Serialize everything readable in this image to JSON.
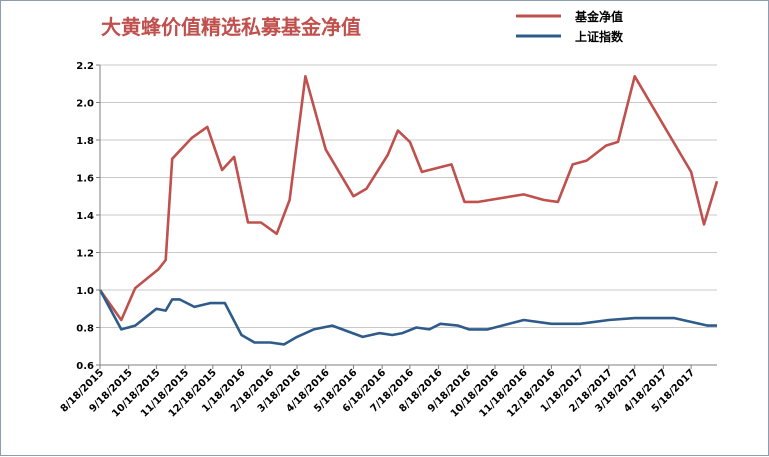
{
  "chart_data": {
    "type": "line",
    "title": "大黄蜂价值精选私募基金净值",
    "xlabel": "",
    "ylabel": "",
    "ylim": [
      0.6,
      2.2
    ],
    "yticks": [
      "0.6",
      "0.8",
      "1.0",
      "1.2",
      "1.4",
      "1.6",
      "1.8",
      "2.0",
      "2.2"
    ],
    "xticks": [
      "8/18/2015",
      "9/18/2015",
      "10/18/2015",
      "11/18/2015",
      "12/18/2015",
      "1/18/2016",
      "2/18/2016",
      "3/18/2016",
      "4/18/2016",
      "5/18/2016",
      "6/18/2016",
      "7/18/2016",
      "8/18/2016",
      "9/18/2016",
      "10/18/2016",
      "11/18/2016",
      "12/18/2016",
      "1/18/2017",
      "2/18/2017",
      "3/18/2017",
      "4/18/2017",
      "5/18/2017"
    ],
    "grid": true,
    "legend_position": "top-right",
    "x_domain": [
      "8/18/2015",
      "6/15/2017"
    ],
    "series": [
      {
        "name": "基金净值",
        "color": "#c0504d",
        "points": [
          [
            "8/18/2015",
            1.0
          ],
          [
            "9/10/2015",
            0.84
          ],
          [
            "9/25/2015",
            1.01
          ],
          [
            "10/20/2015",
            1.11
          ],
          [
            "10/28/2015",
            1.16
          ],
          [
            "11/4/2015",
            1.7
          ],
          [
            "11/25/2015",
            1.81
          ],
          [
            "12/12/2015",
            1.87
          ],
          [
            "12/28/2015",
            1.64
          ],
          [
            "1/10/2016",
            1.71
          ],
          [
            "1/25/2016",
            1.36
          ],
          [
            "2/8/2016",
            1.36
          ],
          [
            "2/25/2016",
            1.3
          ],
          [
            "3/10/2016",
            1.48
          ],
          [
            "3/27/2016",
            2.14
          ],
          [
            "4/18/2016",
            1.75
          ],
          [
            "5/18/2016",
            1.5
          ],
          [
            "6/1/2016",
            1.54
          ],
          [
            "6/24/2016",
            1.72
          ],
          [
            "7/5/2016",
            1.85
          ],
          [
            "7/18/2016",
            1.79
          ],
          [
            "7/31/2016",
            1.63
          ],
          [
            "9/1/2016",
            1.67
          ],
          [
            "9/15/2016",
            1.47
          ],
          [
            "9/30/2016",
            1.47
          ],
          [
            "11/18/2016",
            1.51
          ],
          [
            "12/10/2016",
            1.48
          ],
          [
            "12/25/2016",
            1.47
          ],
          [
            "1/10/2017",
            1.67
          ],
          [
            "1/25/2017",
            1.69
          ],
          [
            "2/15/2017",
            1.77
          ],
          [
            "2/28/2017",
            1.79
          ],
          [
            "3/18/2017",
            2.14
          ],
          [
            "5/18/2017",
            1.63
          ],
          [
            "6/1/2017",
            1.35
          ],
          [
            "6/15/2017",
            1.58
          ]
        ]
      },
      {
        "name": "上证指数",
        "color": "#2f5b8a",
        "points": [
          [
            "8/18/2015",
            1.0
          ],
          [
            "9/10/2015",
            0.79
          ],
          [
            "9/25/2015",
            0.81
          ],
          [
            "10/18/2015",
            0.9
          ],
          [
            "10/28/2015",
            0.89
          ],
          [
            "11/4/2015",
            0.95
          ],
          [
            "11/12/2015",
            0.95
          ],
          [
            "11/28/2015",
            0.91
          ],
          [
            "12/15/2015",
            0.93
          ],
          [
            "12/31/2015",
            0.93
          ],
          [
            "1/18/2016",
            0.76
          ],
          [
            "2/1/2016",
            0.72
          ],
          [
            "2/18/2016",
            0.72
          ],
          [
            "3/4/2016",
            0.71
          ],
          [
            "3/18/2016",
            0.75
          ],
          [
            "4/5/2016",
            0.79
          ],
          [
            "4/25/2016",
            0.81
          ],
          [
            "5/28/2016",
            0.75
          ],
          [
            "6/15/2016",
            0.77
          ],
          [
            "6/29/2016",
            0.76
          ],
          [
            "7/10/2016",
            0.77
          ],
          [
            "7/25/2016",
            0.8
          ],
          [
            "8/8/2016",
            0.79
          ],
          [
            "8/20/2016",
            0.82
          ],
          [
            "9/8/2016",
            0.81
          ],
          [
            "9/20/2016",
            0.79
          ],
          [
            "10/10/2016",
            0.79
          ],
          [
            "11/18/2016",
            0.84
          ],
          [
            "12/18/2016",
            0.82
          ],
          [
            "1/3/2017",
            0.82
          ],
          [
            "1/18/2017",
            0.82
          ],
          [
            "2/18/2017",
            0.84
          ],
          [
            "3/18/2017",
            0.85
          ],
          [
            "4/30/2017",
            0.85
          ],
          [
            "5/18/2017",
            0.83
          ],
          [
            "6/5/2017",
            0.81
          ],
          [
            "6/15/2017",
            0.81
          ]
        ]
      }
    ]
  }
}
